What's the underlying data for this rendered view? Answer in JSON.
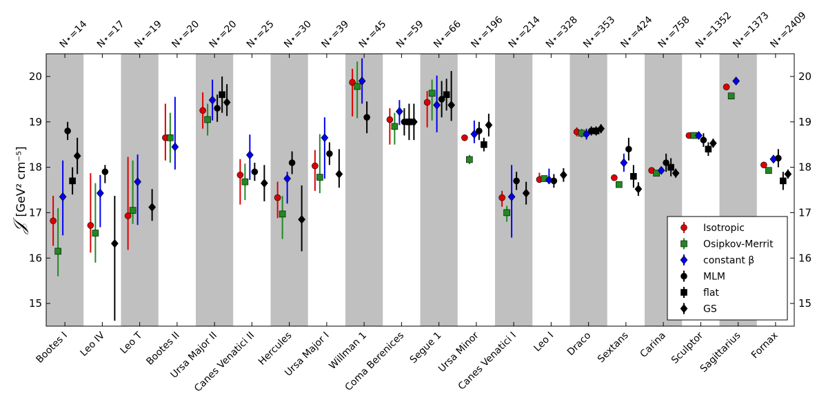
{
  "chart_data": {
    "type": "scatter",
    "ylabel_main": "𝒥",
    "ylabel_units": "[GeV² cm⁻⁵]",
    "ylim": [
      14.5,
      20.5
    ],
    "yticks": [
      15,
      16,
      17,
      18,
      19,
      20
    ],
    "ytick_labels": [
      "15",
      "16",
      "17",
      "18",
      "19",
      "20"
    ],
    "categories": [
      "Bootes I",
      "Leo IV",
      "Leo T",
      "Bootes II",
      "Ursa Major II",
      "Canes Venatici II",
      "Hercules",
      "Ursa Major I",
      "Willman 1",
      "Coma Berenices",
      "Segue 1",
      "Ursa Minor",
      "Canes Venatici I",
      "Leo I",
      "Draco",
      "Sextans",
      "Carina",
      "Sculptor",
      "Sagittarius",
      "Fornax"
    ],
    "n_labels": [
      "N⋆=14",
      "N⋆=17",
      "N⋆=19",
      "N⋆=20",
      "N⋆=20",
      "N⋆=25",
      "N⋆=30",
      "N⋆=39",
      "N⋆=45",
      "N⋆=59",
      "N⋆=66",
      "N⋆=196",
      "N⋆=214",
      "N⋆=328",
      "N⋆=353",
      "N⋆=424",
      "N⋆=758",
      "N⋆=1352",
      "N⋆=1373",
      "N⋆=2409"
    ],
    "shaded_categories": [
      "Bootes I",
      "Leo T",
      "Ursa Major II",
      "Hercules",
      "Willman 1",
      "Segue 1",
      "Canes Venatici I",
      "Draco",
      "Carina",
      "Sagittarius"
    ],
    "legend_position": "lower-right",
    "series": [
      {
        "name": "Isotropic",
        "marker": "circle",
        "color": "#dd0000",
        "y": [
          16.82,
          16.72,
          16.93,
          18.65,
          19.25,
          17.83,
          17.33,
          18.03,
          19.87,
          19.05,
          19.43,
          18.65,
          17.33,
          17.73,
          18.78,
          17.77,
          17.93,
          18.7,
          19.77,
          18.05
        ],
        "err_low": [
          0.55,
          0.6,
          0.75,
          0.5,
          0.4,
          0.65,
          0.45,
          0.55,
          0.75,
          0.55,
          0.55,
          0.05,
          0.2,
          0.05,
          0.1,
          0.05,
          0.05,
          0.05,
          0.05,
          0.05
        ],
        "err_high": [
          0.55,
          1.15,
          1.3,
          0.75,
          0.4,
          0.35,
          0.35,
          0.35,
          0.3,
          0.25,
          0.25,
          0.05,
          0.15,
          0.15,
          0.1,
          0.05,
          0.05,
          0.05,
          0.05,
          0.05
        ]
      },
      {
        "name": "Osipkov-Merrit",
        "marker": "square",
        "color": "#228822",
        "y": [
          16.15,
          16.55,
          17.05,
          18.65,
          19.05,
          17.68,
          16.97,
          17.78,
          19.78,
          18.9,
          19.63,
          18.17,
          17.0,
          17.75,
          18.75,
          17.62,
          17.87,
          18.7,
          19.57,
          17.93
        ],
        "err_low": [
          0.55,
          0.65,
          0.3,
          0.55,
          0.35,
          0.4,
          0.55,
          0.35,
          0.7,
          0.4,
          0.6,
          0.1,
          0.2,
          0.05,
          0.1,
          0.05,
          0.05,
          0.05,
          0.05,
          0.05
        ],
        "err_high": [
          0.95,
          1.1,
          1.1,
          0.55,
          0.35,
          0.4,
          0.4,
          0.95,
          0.55,
          0.3,
          0.3,
          0.1,
          0.15,
          0.05,
          0.1,
          0.05,
          0.05,
          0.05,
          0.05,
          0.05
        ]
      },
      {
        "name": "constant β",
        "marker": "diamond",
        "color": "#0000ee",
        "y": [
          17.35,
          17.43,
          17.68,
          18.45,
          19.48,
          18.27,
          17.75,
          18.65,
          19.9,
          19.23,
          19.37,
          18.73,
          17.35,
          17.72,
          18.73,
          18.1,
          17.93,
          18.7,
          19.9,
          18.18
        ],
        "err_low": [
          0.85,
          0.75,
          0.95,
          0.5,
          0.45,
          0.55,
          0.55,
          0.9,
          0.5,
          0.3,
          0.6,
          0.2,
          0.9,
          0.08,
          0.12,
          0.2,
          0.05,
          0.05,
          0.05,
          0.05
        ],
        "err_high": [
          0.8,
          0.4,
          0.6,
          1.1,
          0.45,
          0.45,
          0.15,
          0.45,
          0.5,
          0.25,
          0.65,
          0.3,
          0.7,
          0.25,
          0.12,
          0.2,
          0.05,
          0.05,
          0.05,
          0.05
        ]
      },
      {
        "name": "MLM",
        "marker": "circle",
        "color": "#000000",
        "y": [
          18.8,
          17.9,
          null,
          null,
          19.3,
          17.9,
          18.1,
          18.3,
          19.1,
          19.0,
          19.5,
          18.8,
          17.7,
          17.7,
          18.8,
          18.4,
          18.1,
          18.6,
          null,
          18.2
        ],
        "err_low": [
          0.2,
          0.25,
          null,
          null,
          0.3,
          0.2,
          0.25,
          0.25,
          0.35,
          0.3,
          0.4,
          0.2,
          0.2,
          0.15,
          0.1,
          0.25,
          0.2,
          0.15,
          null,
          0.2
        ],
        "err_high": [
          0.2,
          0.15,
          null,
          null,
          0.3,
          0.2,
          0.25,
          0.25,
          0.35,
          0.3,
          0.4,
          0.2,
          0.2,
          0.15,
          0.1,
          0.25,
          0.2,
          0.15,
          null,
          0.2
        ]
      },
      {
        "name": "flat",
        "marker": "square",
        "color": "#000000",
        "y": [
          17.7,
          null,
          null,
          null,
          19.6,
          null,
          null,
          null,
          null,
          19.0,
          19.6,
          18.5,
          null,
          null,
          18.8,
          17.8,
          18.0,
          18.4,
          null,
          17.7
        ],
        "err_low": [
          0.3,
          null,
          null,
          null,
          0.4,
          null,
          null,
          null,
          null,
          0.4,
          0.35,
          0.15,
          null,
          null,
          0.1,
          0.25,
          0.2,
          0.15,
          null,
          0.2
        ],
        "err_high": [
          0.3,
          null,
          null,
          null,
          0.4,
          null,
          null,
          null,
          null,
          0.4,
          0.35,
          0.15,
          null,
          null,
          0.1,
          0.25,
          0.2,
          0.15,
          null,
          0.2
        ]
      },
      {
        "name": "GS",
        "marker": "diamond",
        "color": "#000000",
        "y": [
          18.25,
          16.32,
          17.12,
          null,
          19.43,
          17.65,
          16.85,
          17.85,
          null,
          19.0,
          19.37,
          18.93,
          17.43,
          17.83,
          18.85,
          17.52,
          17.87,
          18.53,
          null,
          17.85
        ],
        "err_low": [
          0.4,
          1.7,
          0.3,
          null,
          0.3,
          0.4,
          0.7,
          0.3,
          null,
          0.4,
          0.35,
          0.25,
          0.25,
          0.15,
          0.1,
          0.15,
          0.1,
          0.1,
          null,
          0.1
        ],
        "err_high": [
          0.4,
          1.05,
          0.4,
          null,
          0.4,
          0.4,
          0.75,
          0.55,
          null,
          0.4,
          0.75,
          0.25,
          0.25,
          0.15,
          0.1,
          0.15,
          0.1,
          0.1,
          null,
          0.1
        ]
      }
    ]
  }
}
